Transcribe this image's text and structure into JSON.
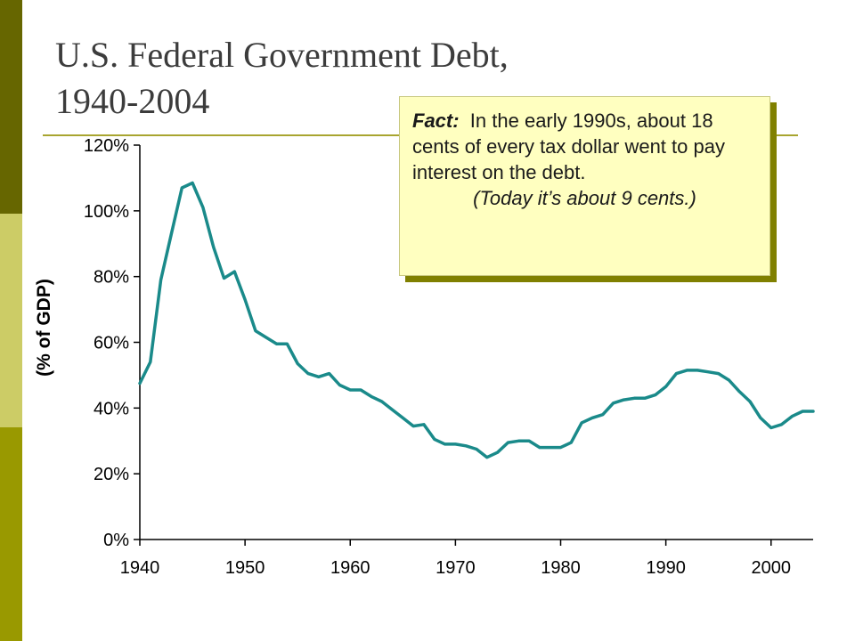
{
  "slide": {
    "title_line1": "U.S. Federal Government Debt,",
    "title_line2": "1940-2004",
    "colors": {
      "bar_dark": "#666600",
      "bar_light": "#cccc66",
      "bar_mid": "#999900",
      "rule": "#a8a530"
    }
  },
  "fact": {
    "label": "Fact:",
    "text": "In the early 1990s, about 18 cents of every tax dollar went to pay interest on the debt.",
    "note": "(Today it’s about 9 cents.)"
  },
  "chart_data": {
    "type": "line",
    "ylabel": "(% of GDP)",
    "xlabel": "",
    "title": "",
    "xlim": [
      1940,
      2004
    ],
    "ylim": [
      0,
      120
    ],
    "x_ticks": [
      1940,
      1950,
      1960,
      1970,
      1980,
      1990,
      2000
    ],
    "x_tick_labels": [
      "1940",
      "1950",
      "1960",
      "1970",
      "1980",
      "1990",
      "2000"
    ],
    "y_ticks": [
      0,
      20,
      40,
      60,
      80,
      100,
      120
    ],
    "y_tick_labels": [
      "0%",
      "20%",
      "40%",
      "60%",
      "80%",
      "100%",
      "120%"
    ],
    "grid": false,
    "line_color": "#1a8a8a",
    "series": [
      {
        "name": "",
        "x": [
          1940,
          1941,
          1942,
          1943,
          1944,
          1945,
          1946,
          1947,
          1948,
          1949,
          1950,
          1951,
          1952,
          1953,
          1954,
          1955,
          1956,
          1957,
          1958,
          1959,
          1960,
          1961,
          1962,
          1963,
          1964,
          1965,
          1966,
          1967,
          1968,
          1969,
          1970,
          1971,
          1972,
          1973,
          1974,
          1975,
          1976,
          1977,
          1978,
          1979,
          1980,
          1981,
          1982,
          1983,
          1984,
          1985,
          1986,
          1987,
          1988,
          1989,
          1990,
          1991,
          1992,
          1993,
          1994,
          1995,
          1996,
          1997,
          1998,
          1999,
          2000,
          2001,
          2002,
          2003,
          2004
        ],
        "values": [
          47.5,
          54,
          79,
          93,
          107,
          108.5,
          101,
          89,
          79.5,
          81.5,
          73,
          63.5,
          61.5,
          59.5,
          59.5,
          53.5,
          50.5,
          49.5,
          50.5,
          47,
          45.5,
          45.5,
          43.5,
          42,
          39.5,
          37,
          34.5,
          35,
          30.5,
          29,
          29,
          28.5,
          27.5,
          25,
          26.5,
          29.5,
          30,
          30,
          28,
          28,
          28,
          29.5,
          35.5,
          37,
          38,
          41.5,
          42.5,
          43,
          43,
          44,
          46.5,
          50.5,
          51.5,
          51.5,
          51,
          50.5,
          48.5,
          45,
          42,
          37,
          34,
          35,
          37.5,
          39,
          39
        ]
      }
    ]
  }
}
